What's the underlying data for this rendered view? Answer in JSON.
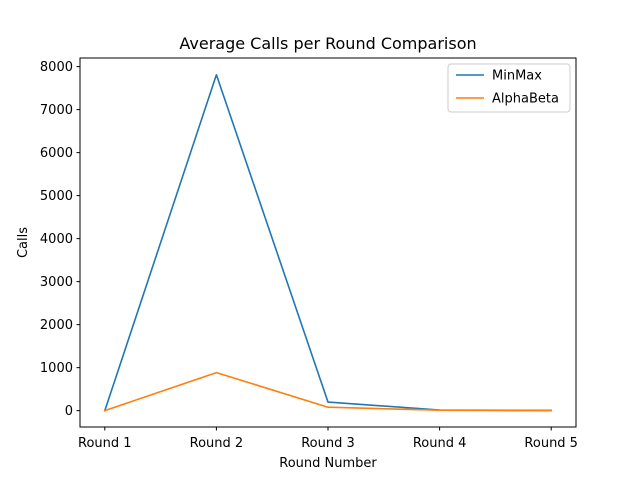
{
  "chart_data": {
    "type": "line",
    "title": "Average Calls per Round Comparison",
    "xlabel": "Round Number",
    "ylabel": "Calls",
    "categories": [
      "Round 1",
      "Round 2",
      "Round 3",
      "Round 4",
      "Round 5"
    ],
    "ylim": [
      -380,
      8200
    ],
    "yticks": [
      0,
      1000,
      2000,
      3000,
      4000,
      5000,
      6000,
      7000,
      8000
    ],
    "grid": false,
    "legend_position": "top-right",
    "series": [
      {
        "name": "MinMax",
        "color": "#1f77b4",
        "values": [
          0,
          7810,
          200,
          15,
          5
        ]
      },
      {
        "name": "AlphaBeta",
        "color": "#ff7f0e",
        "values": [
          0,
          885,
          80,
          10,
          3
        ]
      }
    ]
  }
}
